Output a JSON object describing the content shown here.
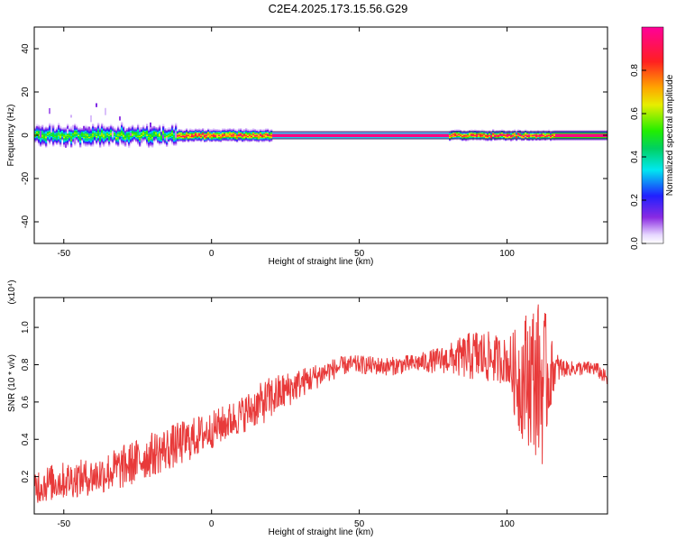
{
  "figure_title": "C2E4.2025.173.15.56.G29",
  "colors": {
    "snr_line": "#e83a3a",
    "ridge_center": "#ff2a55",
    "background": "#ffffff"
  },
  "chart_data": [
    {
      "type": "heatmap",
      "title": "C2E4.2025.173.15.56.G29",
      "xlabel": "Height of straight line (km)",
      "ylabel": "Frequency (Hz)",
      "xlim": [
        -60,
        134
      ],
      "ylim": [
        -50,
        50
      ],
      "xticks": [
        -50,
        0,
        50,
        100
      ],
      "yticks": [
        -40,
        -20,
        0,
        20,
        40
      ],
      "colorbar": {
        "label": "Normalized spectral amplitude",
        "range": [
          0,
          1
        ],
        "ticks": [
          0.0,
          0.2,
          0.4,
          0.6,
          0.8
        ],
        "tick_labels": [
          "0.0",
          "0.2",
          "0.4",
          "0.6",
          "0.8"
        ],
        "colormap": "rainbow (white-purple-blue-cyan-green-yellow-orange-red-pink)"
      },
      "ridge": {
        "center_frequency_hz": 0,
        "segments": [
          {
            "x_start": -60,
            "x_end": -12,
            "halfwidth_hz": 3.5,
            "peak_amplitude": 0.55,
            "character": "noisy"
          },
          {
            "x_start": -12,
            "x_end": 20,
            "halfwidth_hz": 2.5,
            "peak_amplitude": 0.85,
            "character": "mixed"
          },
          {
            "x_start": 20,
            "x_end": 80,
            "halfwidth_hz": 1.5,
            "peak_amplitude": 1.0,
            "character": "steady"
          },
          {
            "x_start": 80,
            "x_end": 116,
            "halfwidth_hz": 2.0,
            "peak_amplitude": 0.9,
            "character": "mixed"
          },
          {
            "x_start": 116,
            "x_end": 134,
            "halfwidth_hz": 2.0,
            "peak_amplitude": 0.95,
            "character": "steady"
          }
        ]
      }
    },
    {
      "type": "line",
      "xlabel": "Height of straight line (km)",
      "ylabel": "SNR (10 * v/v)",
      "y_scale_label": "(x10⁴)",
      "xlim": [
        -60,
        134
      ],
      "ylim": [
        0,
        1.16
      ],
      "xticks": [
        -50,
        0,
        50,
        100
      ],
      "yticks": [
        0.2,
        0.4,
        0.6,
        0.8,
        1.0
      ],
      "ytick_labels": [
        "0.2",
        "0.4",
        "0.6",
        "0.8",
        "1.0"
      ],
      "series": [
        {
          "x": [
            -60,
            -50,
            -40,
            -30,
            -20,
            -10,
            0,
            10,
            20,
            30,
            40,
            46,
            50,
            60,
            70,
            80,
            90,
            100,
            104,
            108,
            112,
            116,
            120,
            130,
            134
          ],
          "y": [
            0.15,
            0.18,
            0.2,
            0.25,
            0.32,
            0.38,
            0.45,
            0.53,
            0.62,
            0.7,
            0.77,
            0.8,
            0.8,
            0.79,
            0.81,
            0.83,
            0.85,
            0.82,
            0.72,
            0.75,
            0.7,
            0.78,
            0.78,
            0.78,
            0.72
          ],
          "noise_amplitude": [
            0.1,
            0.1,
            0.1,
            0.12,
            0.12,
            0.12,
            0.1,
            0.1,
            0.12,
            0.08,
            0.06,
            0.05,
            0.05,
            0.05,
            0.05,
            0.08,
            0.15,
            0.12,
            0.3,
            0.4,
            0.45,
            0.1,
            0.04,
            0.04,
            0.04
          ]
        }
      ]
    }
  ]
}
